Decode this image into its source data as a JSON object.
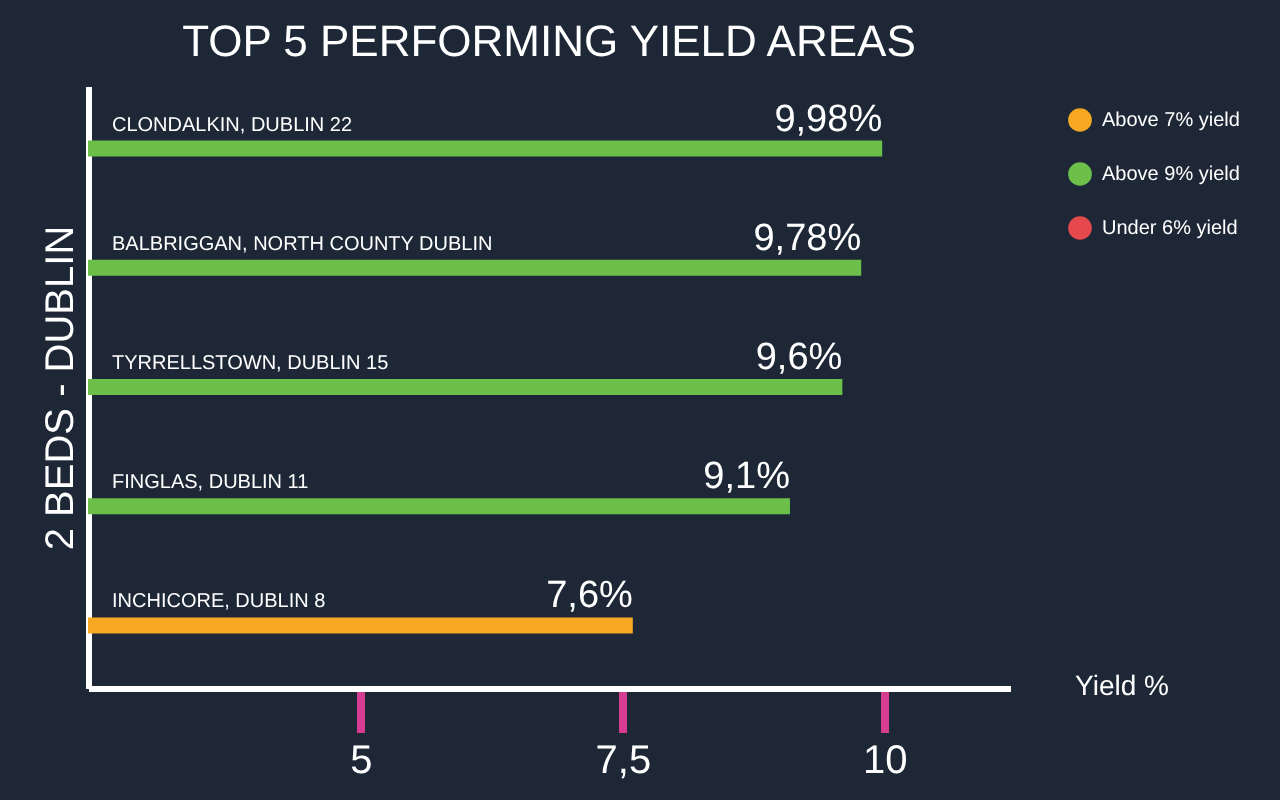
{
  "chart_data": {
    "type": "bar",
    "orientation": "horizontal",
    "title": "TOP 5 PERFORMING YIELD AREAS",
    "ylabel": "2 BEDS - DUBLIN",
    "xlabel": "Yield %",
    "categories": [
      "CLONDALKIN, DUBLIN 22",
      "BALBRIGGAN, NORTH COUNTY DUBLIN",
      "TYRRELLSTOWN, DUBLIN 15",
      "FINGLAS, DUBLIN 11",
      "INCHICORE,  DUBLIN 8"
    ],
    "series": [
      {
        "name": "Above 7% yield",
        "color": "#f7a823",
        "values": [
          null,
          null,
          null,
          null,
          7.6
        ],
        "value_labels": [
          null,
          null,
          null,
          null,
          "7,6%"
        ]
      },
      {
        "name": "Above 9% yield",
        "color": "#6cc04a",
        "values": [
          9.98,
          9.78,
          9.6,
          9.1,
          null
        ],
        "value_labels": [
          "9,98%",
          "9,78%",
          "9,6%",
          "9,1%",
          null
        ]
      },
      {
        "name": "Under 6% yield",
        "color": "#e5484d",
        "values": [
          null,
          null,
          null,
          null,
          null
        ],
        "value_labels": [
          null,
          null,
          null,
          null,
          null
        ]
      }
    ],
    "xlim": [
      2.4,
      11.2
    ],
    "xticks": [
      5,
      {
        "value": 7.5,
        "label": "7,5"
      },
      10
    ],
    "grid": false,
    "legend": "right",
    "tick_labels": "x"
  }
}
